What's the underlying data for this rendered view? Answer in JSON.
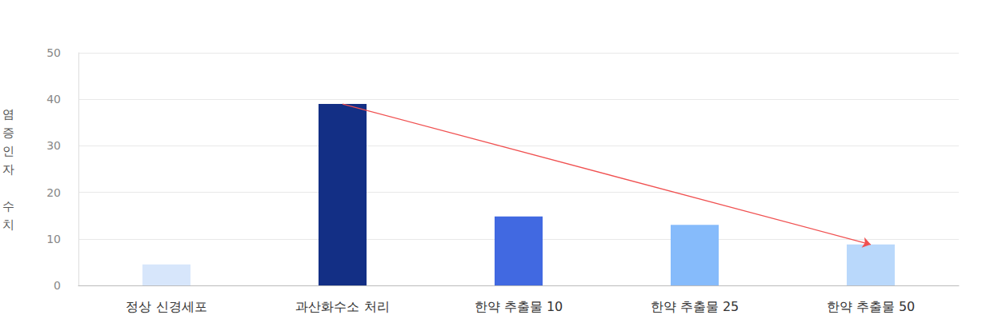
{
  "chart_data": {
    "type": "bar",
    "y_label": "염증인자 수치",
    "categories": [
      "정상 신경세포",
      "과산화수소 처리",
      "한약 추출물 10",
      "한약 추출물 25",
      "한약 추출물 50"
    ],
    "values": [
      4.5,
      39,
      14.8,
      13,
      8.8
    ],
    "colors": [
      "#d7e6fb",
      "#132f85",
      "#4169e1",
      "#86bbfb",
      "#b9d8fb"
    ],
    "ylim": [
      0,
      50
    ],
    "yticks": [
      0,
      10,
      20,
      30,
      40,
      50
    ],
    "grid": true
  }
}
